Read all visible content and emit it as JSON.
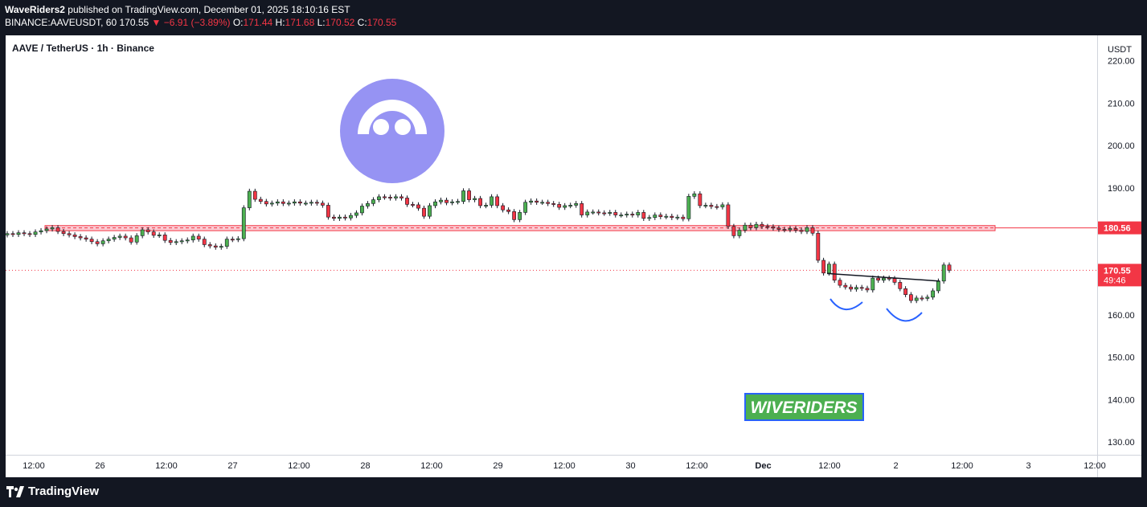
{
  "header": {
    "publisher": "WaveRiders2",
    "published_text": "published on TradingView.com, December 01, 2025 18:10:16 EST",
    "symbol_line": "BINANCE:AAVEUSDT, 60",
    "last": "170.55",
    "change": "▼ −6.91 (−3.89%)",
    "o_label": "O:",
    "o": "171.44",
    "h_label": "H:",
    "h": "171.68",
    "l_label": "L:",
    "l": "170.52",
    "c_label": "C:",
    "c": "170.55"
  },
  "legend": "AAVE / TetherUS · 1h · Binance",
  "watermark_text": "WIVERIDERS",
  "footer": {
    "brand": "TradingView"
  },
  "colors": {
    "up": "#4caf50",
    "down": "#f23645",
    "zone": "#f7a1ae",
    "curve": "#2962ff",
    "logo": "#9693f3",
    "badge_bg": "#4caf50",
    "badge_border": "#2962ff"
  },
  "chart_data": {
    "type": "candlestick",
    "currency": "USDT",
    "y_ticks": [
      "220.00",
      "210.00",
      "200.00",
      "190.00",
      "180.00",
      "170.00",
      "160.00",
      "150.00",
      "140.00",
      "130.00"
    ],
    "y_range": [
      127,
      226
    ],
    "x_ticks": [
      "12:00",
      "26",
      "12:00",
      "27",
      "12:00",
      "28",
      "12:00",
      "29",
      "12:00",
      "30",
      "12:00",
      "Dec",
      "12:00",
      "2",
      "12:00",
      "3",
      "12:00"
    ],
    "x_tick_bold": [
      "Dec"
    ],
    "price_labels": [
      {
        "value": 180.56,
        "text": "180.56",
        "color": "#f23645"
      },
      {
        "value": 170.55,
        "text": "170.55",
        "sub": "49:46",
        "color": "#f23645"
      }
    ],
    "resistance_zone": {
      "low": 179.9,
      "high": 181.1,
      "mid": 180.56
    },
    "candle_count": 141,
    "closes": [
      179.2,
      179.0,
      179.4,
      179.2,
      179.0,
      179.6,
      179.9,
      180.3,
      180.6,
      179.7,
      179.2,
      178.9,
      178.5,
      178.2,
      177.9,
      177.3,
      176.8,
      177.5,
      177.9,
      178.3,
      178.6,
      178.2,
      177.2,
      178.7,
      180.1,
      179.6,
      178.8,
      178.9,
      177.6,
      177.1,
      177.3,
      177.5,
      177.7,
      178.6,
      177.9,
      176.6,
      176.3,
      176.0,
      176.2,
      177.9,
      177.8,
      178.0,
      185.3,
      189.2,
      187.3,
      186.8,
      186.2,
      186.4,
      186.7,
      186.3,
      186.4,
      186.7,
      186.4,
      186.4,
      186.6,
      186.4,
      185.9,
      183.1,
      182.8,
      183.1,
      182.9,
      183.5,
      184.1,
      185.7,
      186.3,
      187.2,
      187.9,
      187.8,
      187.6,
      187.9,
      187.6,
      186.1,
      186.0,
      185.2,
      183.3,
      185.8,
      186.7,
      187.1,
      186.5,
      186.7,
      186.8,
      189.3,
      187.2,
      187.5,
      185.8,
      185.9,
      187.9,
      185.8,
      184.8,
      184.4,
      182.5,
      184.2,
      186.6,
      186.9,
      186.6,
      186.6,
      186.3,
      186.1,
      185.4,
      185.8,
      185.9,
      186.3,
      183.6,
      184.3,
      184.3,
      184.1,
      184.0,
      184.2,
      183.6,
      183.6,
      183.8,
      183.6,
      184.2,
      182.8,
      183.0,
      183.6,
      183.2,
      183.3,
      183.0,
      183.1,
      182.7,
      188.0,
      188.6,
      185.8,
      185.9,
      185.6,
      185.5,
      186.0,
      180.9,
      178.7,
      180.0,
      181.2,
      180.6,
      181.4,
      180.9,
      180.8,
      180.5,
      180.2,
      180.1,
      180.4,
      180.0,
      179.7,
      180.6,
      179.3
    ],
    "post_drop_closes": [
      172.9,
      169.9,
      172.0,
      168.2,
      167.0,
      166.6,
      166.1,
      166.5,
      166.3,
      165.9,
      168.7,
      168.2,
      168.7,
      168.6,
      167.7,
      166.2,
      164.8,
      163.4,
      164.0,
      163.9,
      164.2,
      165.7,
      168.0,
      171.8,
      170.55
    ],
    "neckline": {
      "from": 169.8,
      "to": 168.0
    }
  }
}
